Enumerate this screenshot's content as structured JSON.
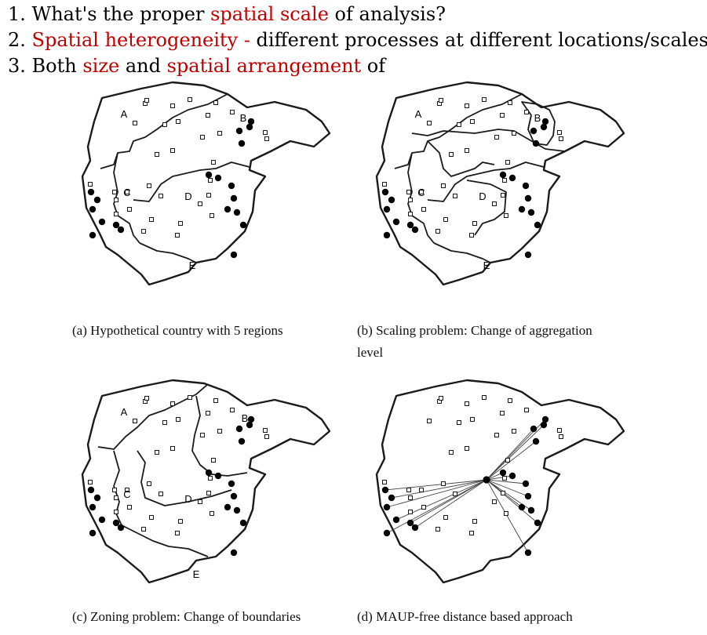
{
  "items": [
    {
      "n": "1.",
      "parts": [
        {
          "t": "What's the proper ",
          "red": false
        },
        {
          "t": "spatial scale",
          "red": true
        },
        {
          "t": " of analysis?",
          "red": false
        }
      ]
    },
    {
      "n": "2.",
      "parts": [
        {
          "t": "Spatial heterogeneity - ",
          "red": true
        },
        {
          "t": "different processes at different locations/scales",
          "red": false
        }
      ]
    },
    {
      "n": "3.",
      "parts": [
        {
          "t": "Both ",
          "red": false
        },
        {
          "t": "size",
          "red": true
        },
        {
          "t": " and ",
          "red": false
        },
        {
          "t": "spatial arrangement",
          "red": true
        },
        {
          "t": " of",
          "red": false
        }
      ]
    }
  ],
  "captions": {
    "a": "(a) Hypothetical country with 5 regions",
    "b1": "(b) Scaling problem: Change of aggregation",
    "b2": "level",
    "c": "(c) Zoning problem: Change of boundaries",
    "d": "(d) MAUP-free distance based approach"
  },
  "region_labels": [
    "A",
    "B",
    "C",
    "D",
    "E"
  ],
  "colors": {
    "red": "#c00000",
    "ink": "#1a1a1a"
  }
}
